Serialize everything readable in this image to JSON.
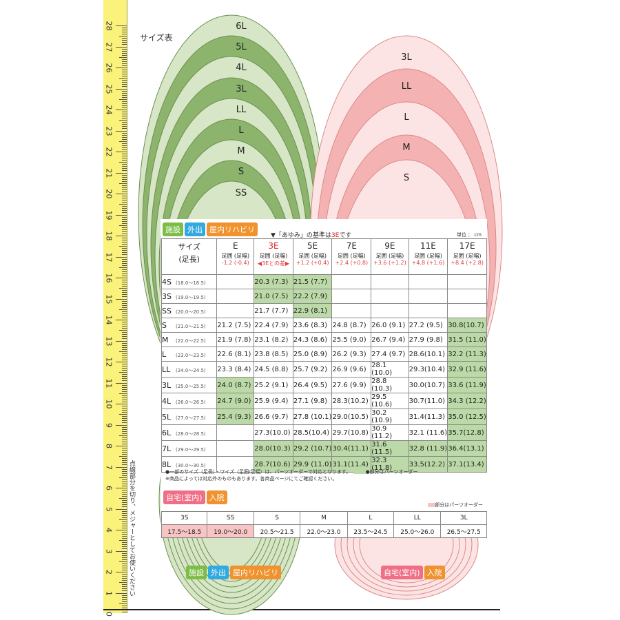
{
  "chart_title": "サイズ表",
  "ruler": {
    "numbers": [
      "28",
      "27",
      "26",
      "25",
      "24",
      "23",
      "22",
      "21",
      "20",
      "19",
      "18",
      "17",
      "16",
      "15",
      "14",
      "13",
      "12",
      "11",
      "10",
      "9",
      "8",
      "7",
      "6",
      "5",
      "4",
      "3",
      "2",
      "1",
      "0"
    ]
  },
  "side_note": "点線部分を切り、メジャーとしてお使いください",
  "green_insole_labels": [
    "6L",
    "5L",
    "4L",
    "3L",
    "LL",
    "L",
    "M",
    "S",
    "SS"
  ],
  "pink_insole_labels": [
    "3L",
    "LL",
    "L",
    "M",
    "S"
  ],
  "card": {
    "tags_top": [
      "施設",
      "外出",
      "屋内リハビリ"
    ],
    "basis_text_pre": "▼「あゆみ」の基準は",
    "basis_text_red": "3E",
    "basis_text_post": "です",
    "unit": "単位 ： cm",
    "table": {
      "header_first": [
        "サイズ",
        "(足長)"
      ],
      "columns": [
        {
          "size": "E",
          "sub": "足囲 (足幅)",
          "diff": "-1.2 (-0.4)"
        },
        {
          "size": "3E",
          "sub": "足囲 (足幅)",
          "diff": "◀3Eとの差▶"
        },
        {
          "size": "5E",
          "sub": "足囲 (足幅)",
          "diff": "+1.2 (+0.4)"
        },
        {
          "size": "7E",
          "sub": "足囲 (足幅)",
          "diff": "+2.4 (+0.8)"
        },
        {
          "size": "9E",
          "sub": "足囲 (足幅)",
          "diff": "+3.6 (+1.2)"
        },
        {
          "size": "11E",
          "sub": "足囲 (足幅)",
          "diff": "+4.8 (+1.6)"
        },
        {
          "size": "17E",
          "sub": "足囲 (足幅)",
          "diff": "+8.4 (+2.8)"
        }
      ],
      "rows": [
        {
          "name": "4S",
          "range": "(18.0〜18.5)",
          "cells": [
            "",
            "20.3 (7.3)",
            "21.5 (7.7)",
            "",
            "",
            "",
            ""
          ]
        },
        {
          "name": "3S",
          "range": "(19.0〜19.5)",
          "cells": [
            "",
            "21.0 (7.5)",
            "22.2 (7.9)",
            "",
            "",
            "",
            ""
          ]
        },
        {
          "name": "SS",
          "range": "(20.0〜20.5)",
          "cells": [
            "",
            "21.7 (7.7)",
            "22.9 (8.1)",
            "",
            "",
            "",
            ""
          ]
        },
        {
          "name": "S",
          "range": "(21.0〜21.5)",
          "cells": [
            "21.2 (7.5)",
            "22.4 (7.9)",
            "23.6 (8.3)",
            "24.8 (8.7)",
            "26.0 (9.1)",
            "27.2 (9.5)",
            "30.8(10.7)"
          ]
        },
        {
          "name": "M",
          "range": "(22.0〜22.5)",
          "cells": [
            "21.9 (7.8)",
            "23.1 (8.2)",
            "24.3 (8.6)",
            "25.5 (9.0)",
            "26.7 (9.4)",
            "27.9 (9.8)",
            "31.5 (11.0)"
          ]
        },
        {
          "name": "L",
          "range": "(23.0〜23.5)",
          "cells": [
            "22.6 (8.1)",
            "23.8 (8.5)",
            "25.0 (8.9)",
            "26.2 (9.3)",
            "27.4 (9.7)",
            "28.6(10.1)",
            "32.2 (11.3)"
          ]
        },
        {
          "name": "LL",
          "range": "(24.0〜24.5)",
          "cells": [
            "23.3 (8.4)",
            "24.5 (8.8)",
            "25.7 (9.2)",
            "26.9 (9.6)",
            "28.1 (10.0)",
            "29.3(10.4)",
            "32.9 (11.6)"
          ]
        },
        {
          "name": "3L",
          "range": "(25.0〜25.5)",
          "cells": [
            "24.0 (8.7)",
            "25.2 (9.1)",
            "26.4 (9.5)",
            "27.6 (9.9)",
            "28.8 (10.3)",
            "30.0(10.7)",
            "33.6 (11.9)"
          ]
        },
        {
          "name": "4L",
          "range": "(26.0〜26.5)",
          "cells": [
            "24.7 (9.0)",
            "25.9 (9.4)",
            "27.1 (9.8)",
            "28.3(10.2)",
            "29.5 (10.6)",
            "30.7(11.0)",
            "34.3 (12.2)"
          ]
        },
        {
          "name": "5L",
          "range": "(27.0〜27.5)",
          "cells": [
            "25.4 (9.3)",
            "26.6 (9.7)",
            "27.8 (10.1)",
            "29.0(10.5)",
            "30.2 (10.9)",
            "31.4(11.3)",
            "35.0 (12.5)"
          ]
        },
        {
          "name": "6L",
          "range": "(28.0〜28.5)",
          "cells": [
            "",
            "27.3(10.0)",
            "28.5(10.4)",
            "29.7(10.8)",
            "30.9 (11.2)",
            "32.1 (11.6)",
            "35.7(12.8)"
          ]
        },
        {
          "name": "7L",
          "range": "(29.0〜29.5)",
          "cells": [
            "",
            "28.0(10.3)",
            "29.2 (10.7)",
            "30.4(11.1)",
            "31.6 (11.5)",
            "32.8 (11.9)",
            "36.4(13.1)"
          ]
        },
        {
          "name": "8L",
          "range": "(30.0〜30.5)",
          "cells": [
            "",
            "28.7(10.6)",
            "29.9 (11.0)",
            "31.1(11.4)",
            "32.3 (11.8)",
            "33.5(12.2)",
            "37.1(13.4)"
          ]
        }
      ],
      "green_cells": [
        [
          0,
          1
        ],
        [
          0,
          2
        ],
        [
          1,
          1
        ],
        [
          1,
          2
        ],
        [
          2,
          2
        ],
        [
          3,
          6
        ],
        [
          4,
          6
        ],
        [
          5,
          6
        ],
        [
          6,
          6
        ],
        [
          7,
          0
        ],
        [
          7,
          6
        ],
        [
          8,
          0
        ],
        [
          8,
          6
        ],
        [
          9,
          0
        ],
        [
          9,
          6
        ],
        [
          10,
          6
        ],
        [
          11,
          1
        ],
        [
          11,
          2
        ],
        [
          11,
          3
        ],
        [
          11,
          4
        ],
        [
          11,
          5
        ],
        [
          11,
          6
        ],
        [
          12,
          1
        ],
        [
          12,
          2
        ],
        [
          12,
          3
        ],
        [
          12,
          4
        ],
        [
          12,
          5
        ],
        [
          12,
          6
        ]
      ]
    },
    "notes": [
      "●一部のサイズ（足長）・ワイズ（足囲/足幅）は、パーツオーダーで対応となります。",
      "●部分はパーツオーダー",
      "※商品によっては対応外のものもあります。各商品ページにてご確認ください。"
    ],
    "tags_home": [
      "自宅(室内)",
      "入院"
    ],
    "home_note": "部分はパーツオーダー",
    "home_table": {
      "sizes": [
        "3S",
        "SS",
        "S",
        "M",
        "L",
        "LL",
        "3L"
      ],
      "ranges": [
        "17.5〜18.5",
        "19.0〜20.0",
        "20.5〜21.5",
        "22.0〜23.0",
        "23.5〜24.5",
        "25.0〜26.0",
        "26.5〜27.5"
      ],
      "pink_cells": [
        0,
        1
      ]
    }
  },
  "bottom_tags_green": [
    "施設",
    "外出",
    "屋内リハビリ"
  ],
  "bottom_tags_pink": [
    "自宅(室内)",
    "入院"
  ],
  "colors": {
    "green_dark": "#8cb46c",
    "green_light": "#d6e6c6",
    "pink_dark": "#f5b2b2",
    "pink_light": "#fde4e4",
    "ruler": "#faf27a"
  }
}
